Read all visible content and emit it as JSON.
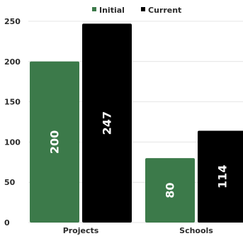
{
  "chart_data": {
    "type": "bar",
    "categories": [
      "Projects",
      "Schools"
    ],
    "series": [
      {
        "name": "Initial",
        "values": [
          200,
          80
        ],
        "color": "#3c7a4a"
      },
      {
        "name": "Current",
        "values": [
          247,
          114
        ],
        "color": "#000000"
      }
    ],
    "ylim": [
      0,
      250
    ],
    "yticks": [
      "0",
      "50",
      "100",
      "150",
      "200",
      "250"
    ],
    "grid": true,
    "legend_position": "top"
  }
}
